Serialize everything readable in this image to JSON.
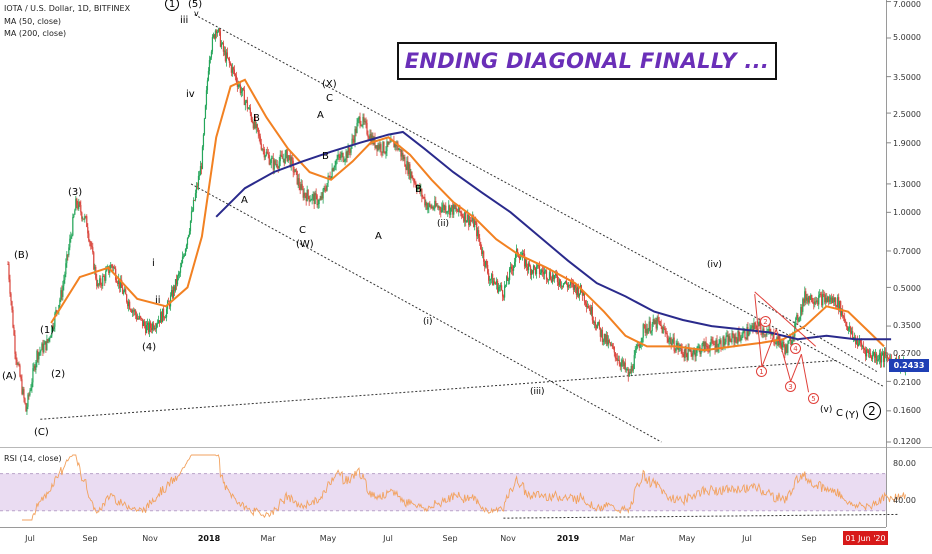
{
  "header": {
    "symbol_line": "IOTA / U.S. Dollar, 1D, BITFINEX",
    "ma50_label": "MA (50, close)",
    "ma200_label": "MA (200, close)",
    "rsi_label": "RSI (14, close)"
  },
  "banner": {
    "text": "ENDING DIAGONAL FINALLY ..."
  },
  "price_tag": "0.2433",
  "date_tag": "01 Jun '20",
  "colors": {
    "candle_up": "#26a65b",
    "candle_down": "#d9443b",
    "ma50": "#f28122",
    "ma200": "#2a2a8c",
    "rsi_line": "#f2a25f",
    "rsi_band": "#eadcf2",
    "banner_text": "#6a2fb8",
    "price_tag_bg": "#1f3fb5",
    "date_tag_bg": "#d71919"
  },
  "chart_data": {
    "type": "candlestick",
    "scale": "log",
    "y_ticks": [
      "7.0000",
      "5.0000",
      "3.5000",
      "2.5000",
      "1.9000",
      "1.3000",
      "1.0000",
      "0.7000",
      "0.5000",
      "0.3500",
      "0.2700",
      "0.2100",
      "0.1600",
      "0.1200"
    ],
    "x_ticks": [
      "Jul",
      "Sep",
      "Nov",
      "2018",
      "Mar",
      "May",
      "Jul",
      "Sep",
      "Nov",
      "2019",
      "Mar",
      "May",
      "Jul",
      "Sep"
    ],
    "x_ticks_bold": [
      "2018",
      "2019"
    ],
    "last_price": 0.2433,
    "rsi_ticks": [
      "80.00",
      "40.00"
    ],
    "rsi_bands": [
      70,
      30
    ],
    "price_anchors": [
      [
        0.0,
        0.62
      ],
      [
        0.02,
        0.28
      ],
      [
        0.05,
        0.16
      ],
      [
        0.08,
        0.27
      ],
      [
        0.11,
        0.3
      ],
      [
        0.15,
        0.48
      ],
      [
        0.19,
        1.1
      ],
      [
        0.22,
        0.9
      ],
      [
        0.25,
        0.5
      ],
      [
        0.29,
        0.62
      ],
      [
        0.32,
        0.48
      ],
      [
        0.36,
        0.38
      ],
      [
        0.39,
        0.34
      ],
      [
        0.44,
        0.4
      ],
      [
        0.48,
        0.58
      ],
      [
        0.51,
        0.95
      ],
      [
        0.54,
        1.6
      ],
      [
        0.56,
        4.2
      ],
      [
        0.58,
        5.6
      ],
      [
        0.6,
        4.4
      ],
      [
        0.63,
        3.6
      ],
      [
        0.67,
        2.6
      ],
      [
        0.71,
        1.8
      ],
      [
        0.74,
        1.55
      ],
      [
        0.78,
        1.7
      ],
      [
        0.82,
        1.2
      ],
      [
        0.87,
        1.1
      ],
      [
        0.91,
        1.6
      ],
      [
        0.95,
        1.75
      ],
      [
        0.98,
        2.4
      ],
      [
        1.02,
        1.9
      ],
      [
        1.05,
        1.8
      ],
      [
        1.08,
        1.9
      ],
      [
        1.12,
        1.45
      ],
      [
        1.17,
        1.05
      ],
      [
        1.22,
        1.05
      ],
      [
        1.26,
        1.0
      ],
      [
        1.3,
        0.9
      ],
      [
        1.34,
        0.55
      ],
      [
        1.38,
        0.48
      ],
      [
        1.42,
        0.7
      ],
      [
        1.45,
        0.6
      ],
      [
        1.5,
        0.57
      ],
      [
        1.55,
        0.52
      ],
      [
        1.6,
        0.48
      ],
      [
        1.65,
        0.33
      ],
      [
        1.7,
        0.26
      ],
      [
        1.73,
        0.22
      ],
      [
        1.77,
        0.34
      ],
      [
        1.81,
        0.36
      ],
      [
        1.85,
        0.3
      ],
      [
        1.89,
        0.27
      ],
      [
        1.94,
        0.29
      ],
      [
        1.99,
        0.3
      ],
      [
        2.04,
        0.32
      ],
      [
        2.09,
        0.35
      ],
      [
        2.14,
        0.31
      ],
      [
        2.17,
        0.28
      ],
      [
        2.22,
        0.46
      ],
      [
        2.27,
        0.45
      ],
      [
        2.31,
        0.44
      ],
      [
        2.35,
        0.32
      ],
      [
        2.4,
        0.27
      ],
      [
        2.45,
        0.26
      ],
      [
        2.5,
        0.24
      ]
    ],
    "ma50": [
      [
        0.12,
        0.36
      ],
      [
        0.2,
        0.55
      ],
      [
        0.28,
        0.6
      ],
      [
        0.36,
        0.45
      ],
      [
        0.44,
        0.42
      ],
      [
        0.5,
        0.5
      ],
      [
        0.54,
        0.8
      ],
      [
        0.58,
        2.0
      ],
      [
        0.62,
        3.2
      ],
      [
        0.66,
        3.4
      ],
      [
        0.72,
        2.4
      ],
      [
        0.78,
        1.8
      ],
      [
        0.84,
        1.45
      ],
      [
        0.9,
        1.35
      ],
      [
        0.96,
        1.6
      ],
      [
        1.01,
        1.9
      ],
      [
        1.06,
        2.0
      ],
      [
        1.12,
        1.7
      ],
      [
        1.18,
        1.35
      ],
      [
        1.24,
        1.1
      ],
      [
        1.3,
        0.95
      ],
      [
        1.36,
        0.78
      ],
      [
        1.42,
        0.68
      ],
      [
        1.5,
        0.6
      ],
      [
        1.58,
        0.52
      ],
      [
        1.66,
        0.4
      ],
      [
        1.72,
        0.32
      ],
      [
        1.78,
        0.29
      ],
      [
        1.86,
        0.29
      ],
      [
        1.94,
        0.28
      ],
      [
        2.02,
        0.29
      ],
      [
        2.1,
        0.3
      ],
      [
        2.16,
        0.31
      ],
      [
        2.22,
        0.35
      ],
      [
        2.28,
        0.42
      ],
      [
        2.34,
        0.4
      ],
      [
        2.4,
        0.33
      ],
      [
        2.44,
        0.29
      ]
    ],
    "ma200": [
      [
        0.58,
        0.96
      ],
      [
        0.66,
        1.25
      ],
      [
        0.74,
        1.45
      ],
      [
        0.82,
        1.6
      ],
      [
        0.9,
        1.75
      ],
      [
        0.98,
        1.9
      ],
      [
        1.06,
        2.05
      ],
      [
        1.1,
        2.1
      ],
      [
        1.16,
        1.8
      ],
      [
        1.24,
        1.45
      ],
      [
        1.32,
        1.2
      ],
      [
        1.4,
        1.0
      ],
      [
        1.48,
        0.8
      ],
      [
        1.56,
        0.64
      ],
      [
        1.64,
        0.52
      ],
      [
        1.72,
        0.46
      ],
      [
        1.8,
        0.4
      ],
      [
        1.88,
        0.37
      ],
      [
        1.96,
        0.35
      ],
      [
        2.04,
        0.34
      ],
      [
        2.12,
        0.33
      ],
      [
        2.2,
        0.31
      ],
      [
        2.28,
        0.32
      ],
      [
        2.36,
        0.31
      ],
      [
        2.44,
        0.31
      ],
      [
        2.46,
        0.31
      ]
    ],
    "wave_labels": [
      "(A)",
      "(B)",
      "(C)",
      "(1)",
      "(2)",
      "(3)",
      "(4)",
      "i",
      "ii",
      "iii",
      "iv",
      "(5)",
      "v",
      "A",
      "B",
      "C",
      "(W)",
      "A",
      "B",
      "C",
      "(X)",
      "A",
      "B",
      "(i)",
      "(ii)",
      "(iii)",
      "(iv)",
      "(v)",
      "C",
      "(Y)",
      "1",
      "2",
      "1",
      "2",
      "3",
      "4",
      "5"
    ]
  }
}
